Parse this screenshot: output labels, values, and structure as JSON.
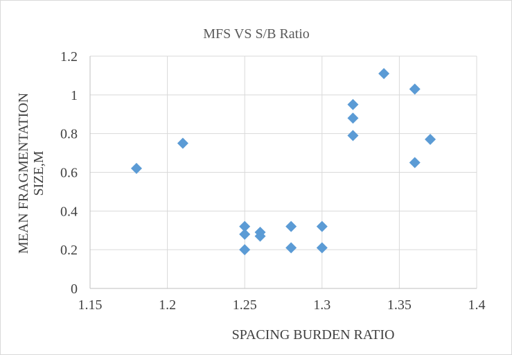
{
  "chart_data": {
    "type": "scatter",
    "title": "MFS VS S/B Ratio",
    "xlabel": "SPACING BURDEN RATIO",
    "ylabel_lines": [
      "MEAN FRAGMENTATION",
      "SIZE,M"
    ],
    "xlim": [
      1.15,
      1.4
    ],
    "ylim": [
      0,
      1.2
    ],
    "x_ticks": [
      1.15,
      1.2,
      1.25,
      1.3,
      1.35,
      1.4
    ],
    "x_tick_labels": [
      "1.15",
      "1.2",
      "1.25",
      "1.3",
      "1.35",
      "1.4"
    ],
    "y_ticks": [
      0,
      0.2,
      0.4,
      0.6,
      0.8,
      1,
      1.2
    ],
    "y_tick_labels": [
      "0",
      "0.2",
      "0.4",
      "0.6",
      "0.8",
      "1",
      "1.2"
    ],
    "grid": true,
    "marker": "diamond",
    "color": "#5b9bd5",
    "points": [
      {
        "x": 1.18,
        "y": 0.62
      },
      {
        "x": 1.21,
        "y": 0.75
      },
      {
        "x": 1.25,
        "y": 0.32
      },
      {
        "x": 1.25,
        "y": 0.28
      },
      {
        "x": 1.25,
        "y": 0.2
      },
      {
        "x": 1.26,
        "y": 0.29
      },
      {
        "x": 1.26,
        "y": 0.27
      },
      {
        "x": 1.28,
        "y": 0.32
      },
      {
        "x": 1.28,
        "y": 0.21
      },
      {
        "x": 1.3,
        "y": 0.32
      },
      {
        "x": 1.3,
        "y": 0.21
      },
      {
        "x": 1.32,
        "y": 0.95
      },
      {
        "x": 1.32,
        "y": 0.88
      },
      {
        "x": 1.32,
        "y": 0.79
      },
      {
        "x": 1.34,
        "y": 1.11
      },
      {
        "x": 1.36,
        "y": 1.03
      },
      {
        "x": 1.36,
        "y": 0.65
      },
      {
        "x": 1.37,
        "y": 0.77
      }
    ]
  }
}
